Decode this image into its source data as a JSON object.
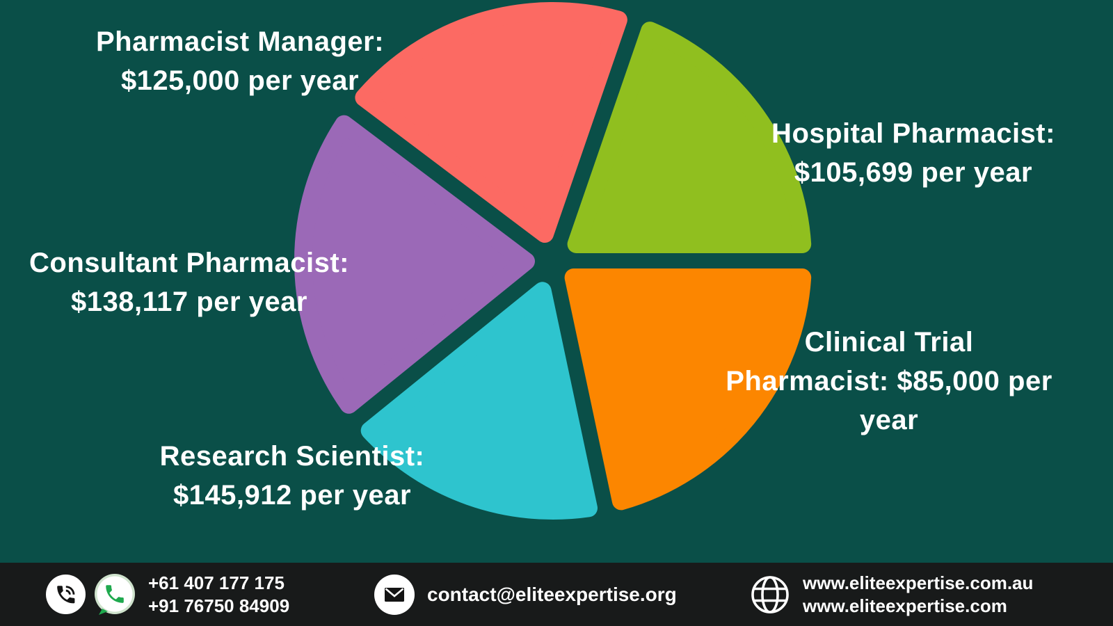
{
  "colors": {
    "background": "#0a4f48",
    "footer-bg": "#181a1a",
    "text": "#ffffff",
    "whatsapp-green": "#1fa94e",
    "whatsapp-ring": "#cfe3cd",
    "icon-dark": "#141414"
  },
  "chart_data": {
    "type": "pie",
    "legend_position": "around-slices",
    "slices": [
      {
        "id": "pharmacist-manager",
        "label": "Pharmacist Manager",
        "value": 125000,
        "value_text": "$125,000 per year",
        "color": "#fc6a63",
        "start_angle": 71,
        "end_angle": 143,
        "label_lines": [
          "Pharmacist Manager:",
          "$125,000 per year"
        ]
      },
      {
        "id": "hospital-pharmacist",
        "label": "Hospital Pharmacist",
        "value": 105699,
        "value_text": "$105,699 per year",
        "color": "#90bf1f",
        "start_angle": 0,
        "end_angle": 71,
        "label_lines": [
          "Hospital Pharmacist:",
          "$105,699 per year"
        ]
      },
      {
        "id": "clinical-trial-pharmacist",
        "label": "Clinical Trial Pharmacist",
        "value": 85000,
        "value_text": "$85,000 per year",
        "color": "#fc8600",
        "start_angle": 282,
        "end_angle": 360,
        "label_lines": [
          "Clinical Trial",
          "Pharmacist: $85,000 per",
          "year"
        ]
      },
      {
        "id": "research-scientist",
        "label": "Research Scientist",
        "value": 145912,
        "value_text": "$145,912 per year",
        "color": "#2ec4ce",
        "start_angle": 219,
        "end_angle": 282,
        "label_lines": [
          "Research Scientist:",
          "$145,912 per year"
        ]
      },
      {
        "id": "consultant-pharmacist",
        "label": "Consultant Pharmacist",
        "value": 138117,
        "value_text": "$138,117 per year",
        "color": "#9b69b7",
        "start_angle": 143,
        "end_angle": 219,
        "label_lines": [
          "Consultant Pharmacist:",
          "$138,117 per year"
        ]
      }
    ]
  },
  "footer": {
    "phones": [
      "+61 407 177 175",
      "+91 76750 84909"
    ],
    "email": "contact@eliteexpertise.org",
    "websites": [
      "www.eliteexpertise.com.au",
      "www.eliteexpertise.com"
    ]
  }
}
